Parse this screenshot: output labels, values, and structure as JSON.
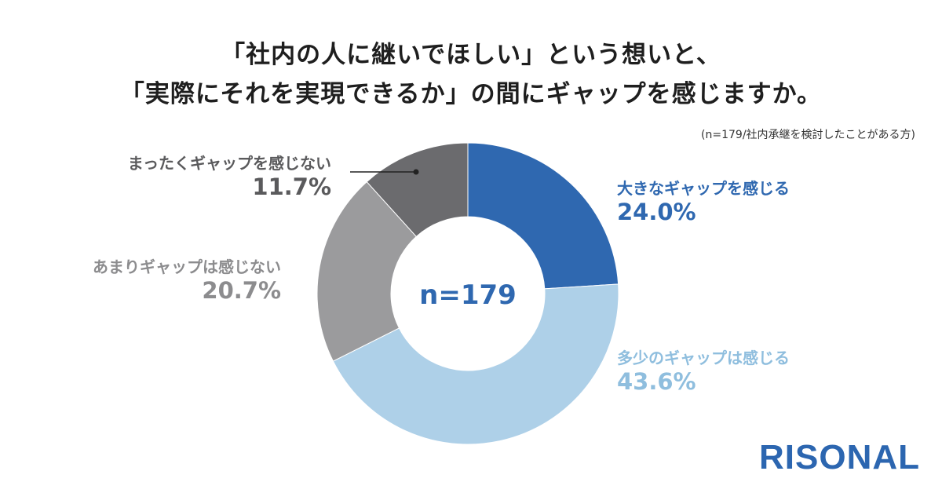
{
  "header": {
    "title_line1": "「社内の人に継いでほしい」という想いと、",
    "title_line2": "「実際にそれを実現できるか」の間にギャップを感じますか。",
    "note": "(n=179/社内承継を検討したことがある方)"
  },
  "chart_data": {
    "type": "pie",
    "donut": true,
    "center_label": "n=179",
    "slices": [
      {
        "label": "大きなギャップを感じる",
        "value": 24.0,
        "display": "24.0%",
        "color": "#2f68b0"
      },
      {
        "label": "多少のギャップは感じる",
        "value": 43.6,
        "display": "43.6%",
        "color": "#aed0e8"
      },
      {
        "label": "あまりギャップは感じない",
        "value": 20.7,
        "display": "20.7%",
        "color": "#9b9b9d"
      },
      {
        "label": "まったくギャップを感じない",
        "value": 11.7,
        "display": "11.7%",
        "color": "#6b6b6e"
      }
    ],
    "label_colors": {
      "大きなギャップを感じる": "#2f68b0",
      "多少のギャップは感じる": "#8fbede",
      "あまりギャップは感じない": "#8c8c8e",
      "まったくギャップを感じない": "#5a5a5c"
    }
  },
  "brand": {
    "logo_text": "RISONAL",
    "color": "#2c66b0"
  }
}
